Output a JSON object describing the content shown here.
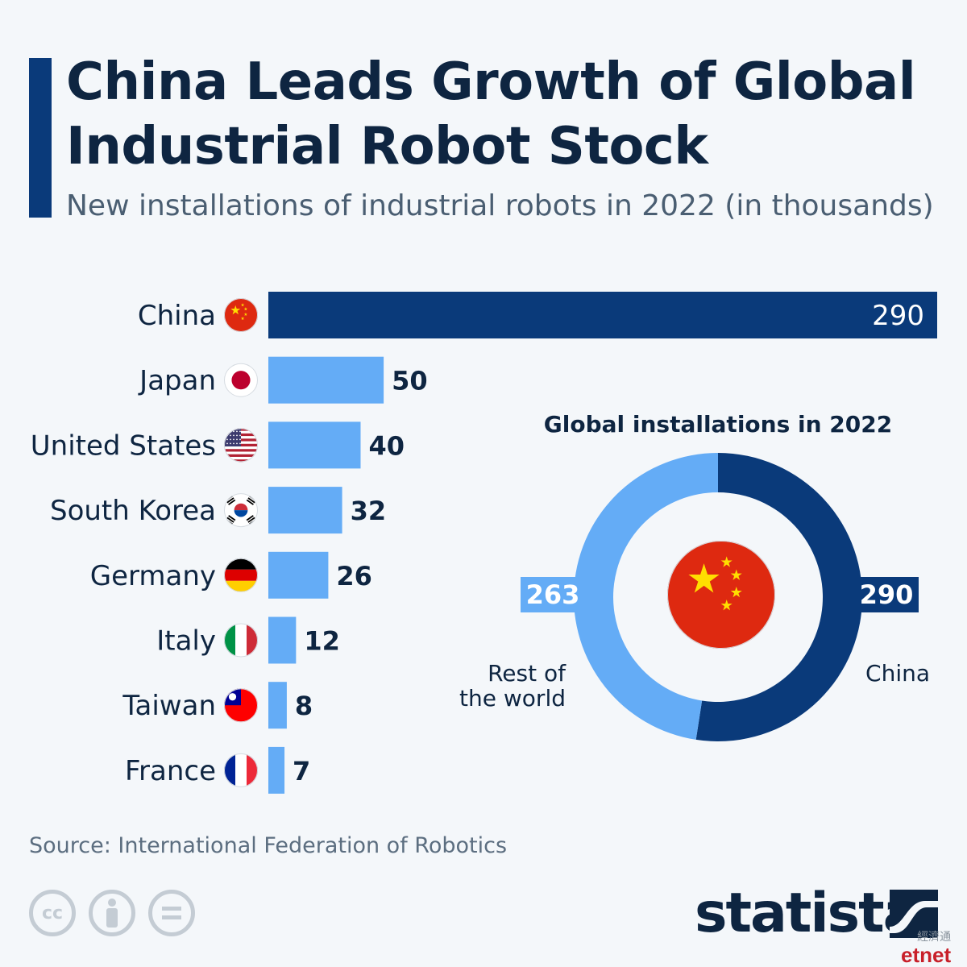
{
  "title": "China Leads Growth of Global Industrial Robot Stock",
  "subtitle": "New installations of industrial robots in 2022 (in thousands)",
  "source": "Source: International Federation of Robotics",
  "brand": "statista",
  "watermark": {
    "cn": "經濟通",
    "en": "etnet"
  },
  "colors": {
    "dark_blue": "#0a3a7a",
    "light_blue": "#64acf6",
    "text": "#0e2541"
  },
  "chart_data": [
    {
      "type": "bar",
      "orientation": "horizontal",
      "categories": [
        "China",
        "Japan",
        "United States",
        "South Korea",
        "Germany",
        "Italy",
        "Taiwan",
        "France"
      ],
      "values": [
        290,
        50,
        40,
        32,
        26,
        12,
        8,
        7
      ],
      "highlight": "China",
      "icons": [
        "china-flag-icon",
        "japan-flag-icon",
        "usa-flag-icon",
        "south-korea-flag-icon",
        "germany-flag-icon",
        "italy-flag-icon",
        "taiwan-flag-icon",
        "france-flag-icon"
      ]
    },
    {
      "type": "pie",
      "title": "Global installations in 2022",
      "slices": [
        {
          "label": "China",
          "value": 290
        },
        {
          "label": "Rest of the world",
          "value": 263
        }
      ]
    }
  ]
}
